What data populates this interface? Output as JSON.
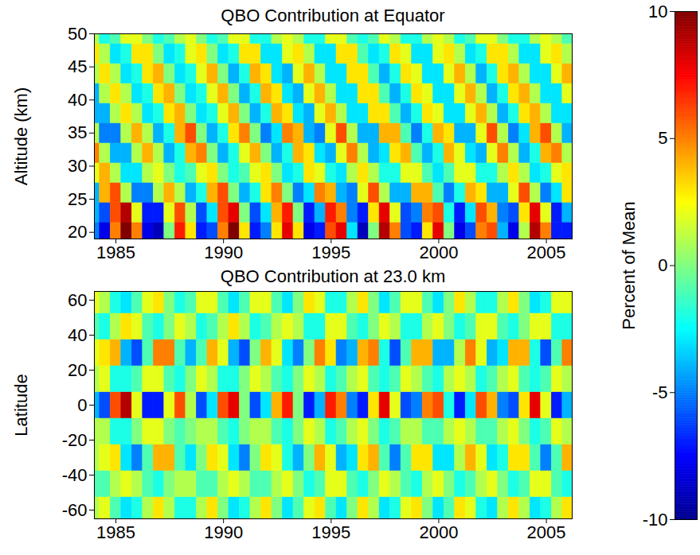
{
  "chart_data": [
    {
      "type": "heatmap",
      "title": "QBO Contribution at Equator",
      "ylabel": "Altitude (km)",
      "xlim": [
        1984,
        2006.2
      ],
      "xticks": [
        1985,
        1990,
        1995,
        2000,
        2005
      ],
      "ylim": [
        19,
        50
      ],
      "yticks": [
        20,
        25,
        30,
        35,
        40,
        45,
        50
      ],
      "x": [
        1984,
        1984.5,
        1985,
        1985.5,
        1986,
        1986.5,
        1987,
        1987.5,
        1988,
        1988.5,
        1989,
        1989.5,
        1990,
        1990.5,
        1991,
        1991.5,
        1992,
        1992.5,
        1993,
        1993.5,
        1994,
        1994.5,
        1995,
        1995.5,
        1996,
        1996.5,
        1997,
        1997.5,
        1998,
        1998.5,
        1999,
        1999.5,
        2000,
        2000.5,
        2001,
        2001.5,
        2002,
        2002.5,
        2003,
        2003.5,
        2004,
        2004.5,
        2005,
        2005.5,
        2006
      ],
      "y": [
        20,
        23,
        26,
        29,
        32,
        35,
        38,
        41,
        44,
        47,
        50
      ],
      "values": [
        [
          -5,
          -8,
          5,
          10,
          5,
          -8,
          -9,
          0,
          7,
          3,
          -7,
          -6,
          5,
          10,
          3,
          -7,
          -5,
          3,
          8,
          3,
          -8,
          -7,
          6,
          8,
          -3,
          -9,
          0,
          9,
          5,
          -6,
          -7,
          3,
          8,
          0,
          -8,
          -6,
          5,
          6,
          -4,
          -8,
          1,
          9,
          5,
          -7,
          -7
        ],
        [
          -4,
          -6,
          6,
          9,
          2,
          -7,
          -7,
          2,
          6,
          1,
          -6,
          -3,
          6,
          8,
          0,
          -6,
          -3,
          4,
          7,
          0,
          -7,
          -4,
          7,
          5,
          -5,
          -7,
          3,
          8,
          2,
          -6,
          -5,
          5,
          6,
          -2,
          -7,
          -3,
          6,
          4,
          -5,
          -6,
          3,
          8,
          2,
          -7,
          -4
        ],
        [
          -4,
          4,
          6,
          1,
          -5,
          -5,
          1,
          4,
          1,
          -4,
          -2,
          4,
          6,
          0,
          -4,
          -2,
          3,
          5,
          0,
          -5,
          -3,
          5,
          4,
          -4,
          -5,
          2,
          6,
          1,
          -4,
          -4,
          4,
          4,
          -1,
          -5,
          -2,
          4,
          3,
          -4,
          -4,
          2,
          6,
          1,
          -5,
          -3,
          3
        ],
        [
          2,
          4,
          1,
          -3,
          -3,
          1,
          2,
          0,
          -2,
          -1,
          2,
          3,
          0,
          -2,
          -1,
          2,
          3,
          0,
          -3,
          -2,
          3,
          2,
          -2,
          -3,
          1,
          3,
          1,
          -2,
          -2,
          2,
          2,
          -1,
          -3,
          -1,
          2,
          2,
          -2,
          -2,
          1,
          3,
          1,
          -3,
          -2,
          2,
          3
        ],
        [
          5,
          1,
          -4,
          -4,
          1,
          4,
          1,
          -4,
          -2,
          4,
          5,
          0,
          -4,
          -2,
          2,
          4,
          0,
          -4,
          -2,
          4,
          3,
          -3,
          -4,
          2,
          5,
          1,
          -4,
          -3,
          3,
          4,
          -1,
          -4,
          -2,
          4,
          2,
          -3,
          -4,
          2,
          5,
          1,
          -4,
          -2,
          4,
          5,
          1
        ],
        [
          1,
          -5,
          -5,
          1,
          4,
          1,
          -4,
          -2,
          4,
          6,
          0,
          -4,
          -2,
          3,
          5,
          0,
          -5,
          -3,
          5,
          4,
          -4,
          -5,
          2,
          6,
          1,
          -4,
          -4,
          4,
          4,
          -1,
          -5,
          -2,
          4,
          3,
          -4,
          -4,
          2,
          6,
          1,
          -5,
          -3,
          4,
          6,
          1,
          -4
        ],
        [
          -4,
          -4,
          1,
          3,
          1,
          -3,
          -2,
          3,
          4,
          0,
          -3,
          -2,
          2,
          4,
          0,
          -4,
          -2,
          4,
          3,
          -3,
          -4,
          2,
          4,
          1,
          -3,
          -3,
          3,
          3,
          -1,
          -4,
          -2,
          3,
          2,
          -3,
          -3,
          2,
          4,
          1,
          -4,
          -2,
          3,
          4,
          1,
          -3,
          -3
        ],
        [
          -4,
          1,
          3,
          1,
          -3,
          -2,
          3,
          4,
          0,
          -3,
          -2,
          2,
          4,
          0,
          -4,
          -2,
          4,
          3,
          -3,
          -4,
          2,
          4,
          1,
          -3,
          -3,
          3,
          3,
          -1,
          -4,
          -2,
          3,
          2,
          -3,
          -3,
          2,
          4,
          1,
          -4,
          -2,
          3,
          4,
          1,
          -3,
          -3,
          2
        ],
        [
          1,
          3,
          1,
          -3,
          -2,
          3,
          4,
          0,
          -3,
          -2,
          2,
          4,
          0,
          -4,
          -2,
          4,
          3,
          -3,
          -4,
          2,
          4,
          1,
          -3,
          -3,
          3,
          3,
          -1,
          -4,
          -2,
          3,
          2,
          -3,
          -3,
          2,
          4,
          1,
          -4,
          -2,
          3,
          4,
          1,
          -3,
          -3,
          2,
          4
        ],
        [
          3,
          1,
          -3,
          -2,
          3,
          3,
          0,
          -3,
          -2,
          2,
          3,
          0,
          -3,
          -2,
          3,
          3,
          -3,
          -3,
          2,
          3,
          1,
          -3,
          -3,
          3,
          3,
          -1,
          -3,
          -2,
          3,
          2,
          -3,
          -3,
          2,
          3,
          1,
          -3,
          -2,
          3,
          3,
          1,
          -3,
          -3,
          2,
          3,
          1
        ],
        [
          1,
          -2,
          -1,
          2,
          2,
          0,
          -2,
          -1,
          1,
          2,
          0,
          -2,
          -1,
          2,
          2,
          -2,
          -2,
          1,
          2,
          1,
          -2,
          -2,
          2,
          2,
          -1,
          -2,
          -1,
          2,
          1,
          -2,
          -2,
          1,
          2,
          1,
          -2,
          -1,
          2,
          2,
          0,
          -2,
          -2,
          1,
          2,
          1,
          -1
        ]
      ]
    },
    {
      "type": "heatmap",
      "title": "QBO Contribution at 23.0 km",
      "ylabel": "Latitude",
      "xlim": [
        1984,
        2006.2
      ],
      "xticks": [
        1985,
        1990,
        1995,
        2000,
        2005
      ],
      "ylim": [
        -65,
        65
      ],
      "yticks": [
        -60,
        -40,
        -20,
        0,
        20,
        40,
        60
      ],
      "x": [
        1984,
        1984.5,
        1985,
        1985.5,
        1986,
        1986.5,
        1987,
        1987.5,
        1988,
        1988.5,
        1989,
        1989.5,
        1990,
        1990.5,
        1991,
        1991.5,
        1992,
        1992.5,
        1993,
        1993.5,
        1994,
        1994.5,
        1995,
        1995.5,
        1996,
        1996.5,
        1997,
        1997.5,
        1998,
        1998.5,
        1999,
        1999.5,
        2000,
        2000.5,
        2001,
        2001.5,
        2002,
        2002.5,
        2003,
        2003.5,
        2004,
        2004.5,
        2005,
        2005.5,
        2006
      ],
      "y": [
        -60,
        -45,
        -30,
        -15,
        0,
        15,
        30,
        45,
        60
      ],
      "values": [
        [
          1,
          2,
          -1,
          -3,
          -2,
          1,
          3,
          1,
          -2,
          -2,
          1,
          3,
          0,
          -3,
          -2,
          1,
          3,
          0,
          -3,
          -1,
          2,
          3,
          -1,
          -3,
          0,
          3,
          1,
          -3,
          -2,
          2,
          3,
          0,
          -3,
          -1,
          3,
          2,
          -2,
          -3,
          1,
          3,
          1,
          -3,
          -2,
          1,
          3
        ],
        [
          -1,
          -1,
          1,
          2,
          1,
          -1,
          -2,
          0,
          1,
          1,
          -1,
          -1,
          1,
          2,
          1,
          -1,
          -1,
          1,
          2,
          0,
          -2,
          -1,
          2,
          2,
          -1,
          -2,
          0,
          2,
          1,
          -1,
          -2,
          1,
          2,
          0,
          -2,
          -1,
          1,
          2,
          0,
          -2,
          -1,
          2,
          2,
          -1,
          -2
        ],
        [
          1,
          2,
          3,
          -3,
          -5,
          -1,
          4,
          4,
          -1,
          -3,
          0,
          3,
          2,
          -3,
          -5,
          0,
          3,
          2,
          -2,
          -4,
          0,
          4,
          2,
          -4,
          -3,
          3,
          4,
          -1,
          -5,
          -1,
          3,
          3,
          -3,
          -3,
          1,
          4,
          2,
          -3,
          -2,
          3,
          3,
          -1,
          -5,
          -1,
          4
        ],
        [
          1,
          1,
          -2,
          -2,
          0,
          2,
          2,
          0,
          -1,
          0,
          1,
          1,
          -1,
          -2,
          0,
          1,
          1,
          -1,
          -2,
          0,
          2,
          1,
          -2,
          -1,
          1,
          2,
          0,
          -2,
          -1,
          1,
          1,
          -1,
          -1,
          1,
          2,
          1,
          -1,
          -1,
          1,
          2,
          0,
          -2,
          -1,
          2,
          1
        ],
        [
          -4,
          -6,
          6,
          9,
          2,
          -7,
          -7,
          2,
          6,
          1,
          -6,
          -3,
          6,
          8,
          0,
          -6,
          -3,
          4,
          7,
          0,
          -7,
          -4,
          7,
          5,
          -5,
          -7,
          3,
          8,
          2,
          -6,
          -5,
          5,
          6,
          -2,
          -7,
          -3,
          6,
          4,
          -5,
          -6,
          3,
          8,
          2,
          -7,
          -4
        ],
        [
          1,
          2,
          -2,
          -2,
          -1,
          2,
          2,
          -1,
          -2,
          0,
          2,
          1,
          -2,
          -2,
          0,
          2,
          1,
          -1,
          -2,
          0,
          2,
          1,
          -2,
          -1,
          1,
          2,
          -1,
          -2,
          -1,
          2,
          1,
          -1,
          -2,
          1,
          2,
          1,
          -2,
          -1,
          1,
          2,
          -1,
          -2,
          -1,
          2,
          1
        ],
        [
          2,
          3,
          4,
          -4,
          -6,
          -1,
          5,
          5,
          -1,
          -4,
          -1,
          4,
          2,
          -4,
          -6,
          0,
          4,
          2,
          -3,
          -5,
          0,
          5,
          3,
          -5,
          -4,
          4,
          5,
          -2,
          -6,
          -1,
          4,
          4,
          -4,
          -4,
          1,
          5,
          2,
          -4,
          -3,
          4,
          4,
          -2,
          -6,
          -1,
          5
        ],
        [
          -1,
          -2,
          1,
          3,
          2,
          -1,
          -2,
          0,
          2,
          1,
          -2,
          -1,
          1,
          3,
          1,
          -2,
          -1,
          1,
          2,
          1,
          -2,
          -2,
          2,
          2,
          -1,
          -2,
          0,
          2,
          1,
          -2,
          -2,
          1,
          2,
          0,
          -2,
          -1,
          2,
          2,
          -1,
          -2,
          0,
          2,
          2,
          -2,
          -2
        ],
        [
          2,
          1,
          -2,
          -3,
          -1,
          2,
          3,
          0,
          -2,
          -1,
          2,
          2,
          -1,
          -3,
          -1,
          2,
          2,
          -1,
          -3,
          0,
          3,
          2,
          -2,
          -2,
          1,
          3,
          0,
          -3,
          -1,
          2,
          2,
          -1,
          -3,
          0,
          3,
          1,
          -2,
          -2,
          1,
          3,
          0,
          -3,
          -2,
          2,
          2
        ]
      ]
    },
    {
      "type": "colorbar",
      "label": "Percent of Mean",
      "range": [
        -10,
        10
      ],
      "ticks": [
        -10,
        -5,
        0,
        5,
        10
      ]
    }
  ]
}
